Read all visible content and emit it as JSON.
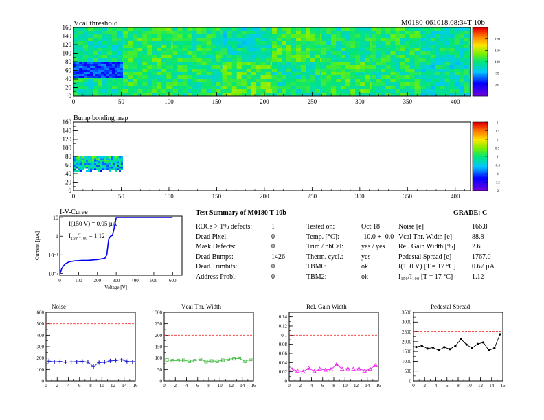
{
  "page": {
    "run_id": "M0180-061018.08:34T-10b"
  },
  "chart_data": [
    {
      "id": "vcal_threshold",
      "type": "heatmap",
      "title": "Vcal threshold",
      "xlim": [
        0,
        416
      ],
      "ylim": [
        0,
        160
      ],
      "x_ticks": [
        0,
        50,
        100,
        150,
        200,
        250,
        300,
        350,
        400
      ],
      "y_ticks": [
        0,
        20,
        40,
        60,
        80,
        100,
        120,
        140,
        160
      ],
      "colorbar_ticks": [
        80,
        90,
        100,
        110,
        120
      ],
      "colorbar_range": [
        70,
        130
      ],
      "rocs": [
        {
          "x": [
            0,
            52
          ],
          "y": [
            80,
            160
          ],
          "level": 98
        },
        {
          "x": [
            52,
            104
          ],
          "y": [
            80,
            160
          ],
          "level": 102
        },
        {
          "x": [
            104,
            156
          ],
          "y": [
            80,
            160
          ],
          "level": 100
        },
        {
          "x": [
            156,
            208
          ],
          "y": [
            80,
            160
          ],
          "level": 97
        },
        {
          "x": [
            208,
            260
          ],
          "y": [
            80,
            160
          ],
          "level": 103
        },
        {
          "x": [
            260,
            312
          ],
          "y": [
            80,
            160
          ],
          "level": 99
        },
        {
          "x": [
            312,
            364
          ],
          "y": [
            80,
            160
          ],
          "level": 101
        },
        {
          "x": [
            364,
            416
          ],
          "y": [
            80,
            160
          ],
          "level": 98
        },
        {
          "x": [
            0,
            52
          ],
          "y": [
            0,
            80
          ],
          "level": 99
        },
        {
          "x": [
            52,
            104
          ],
          "y": [
            0,
            80
          ],
          "level": 101
        },
        {
          "x": [
            104,
            156
          ],
          "y": [
            0,
            80
          ],
          "level": 100
        },
        {
          "x": [
            156,
            208
          ],
          "y": [
            0,
            80
          ],
          "level": 104
        },
        {
          "x": [
            208,
            260
          ],
          "y": [
            0,
            80
          ],
          "level": 99
        },
        {
          "x": [
            260,
            312
          ],
          "y": [
            0,
            80
          ],
          "level": 102
        },
        {
          "x": [
            312,
            364
          ],
          "y": [
            0,
            80
          ],
          "level": 100
        },
        {
          "x": [
            364,
            416
          ],
          "y": [
            0,
            80
          ],
          "level": 97
        }
      ],
      "low_region": {
        "x": [
          0,
          50
        ],
        "y": [
          45,
          80
        ],
        "level": 84
      }
    },
    {
      "id": "bump_bonding_map",
      "type": "heatmap",
      "title": "Bump bonding map",
      "xlim": [
        0,
        416
      ],
      "ylim": [
        0,
        160
      ],
      "x_ticks": [
        0,
        50,
        100,
        150,
        200,
        250,
        300,
        350,
        400
      ],
      "y_ticks": [
        0,
        20,
        40,
        60,
        80,
        100,
        120,
        140,
        160
      ],
      "colorbar_ticks": [
        "2",
        "1.5",
        "1",
        "0.5",
        "0",
        "-0.5",
        "-1",
        "-1.5",
        "-2"
      ],
      "colorbar_range": [
        -2,
        2
      ],
      "filled_region": {
        "x": [
          0,
          50
        ],
        "y": [
          45,
          80
        ]
      }
    },
    {
      "id": "iv_curve",
      "type": "line",
      "title": "I-V-Curve",
      "xlabel": "Voltage [V]",
      "ylabel": "Current [µA]",
      "xlim": [
        0,
        650
      ],
      "ylim": [
        0.008,
        12
      ],
      "log_y": true,
      "x_ticks": [
        0,
        100,
        200,
        300,
        400,
        500,
        600
      ],
      "y_ticks": [
        {
          "v": 0.01,
          "l": "10⁻²"
        },
        {
          "v": 0.1,
          "l": "10⁻¹"
        },
        {
          "v": 1,
          "l": "1"
        },
        {
          "v": 10,
          "l": "10"
        }
      ],
      "annotation_1": "I(150 V) = 0.05 µA",
      "annotation_2": "I₁₅₀/I₁₀₀ = 1.12",
      "x": [
        0,
        5,
        10,
        20,
        30,
        50,
        80,
        120,
        150,
        200,
        240,
        250,
        260,
        270,
        280,
        290,
        300,
        320,
        600
      ],
      "y": [
        0.009,
        0.012,
        0.018,
        0.026,
        0.033,
        0.042,
        0.047,
        0.05,
        0.05,
        0.055,
        0.065,
        0.1,
        0.7,
        1.0,
        1.1,
        3.0,
        10.0,
        10.0,
        10.0
      ]
    },
    {
      "id": "noise",
      "type": "line",
      "title": "Noise",
      "xlim": [
        0,
        16
      ],
      "ylim": [
        0,
        600
      ],
      "x_ticks": [
        0,
        2,
        4,
        6,
        8,
        10,
        12,
        14,
        16
      ],
      "y_ticks": [
        0,
        100,
        200,
        300,
        400,
        500,
        600
      ],
      "threshold": 500,
      "color": "#2222cc",
      "marker": "cross",
      "x": [
        0.5,
        1.5,
        2.5,
        3.5,
        4.5,
        5.5,
        6.5,
        7.5,
        8.5,
        9.5,
        10.5,
        11.5,
        12.5,
        13.5,
        14.5,
        15.5
      ],
      "y": [
        172,
        167,
        170,
        163,
        166,
        168,
        171,
        164,
        125,
        160,
        162,
        175,
        178,
        185,
        170,
        168
      ]
    },
    {
      "id": "vcal_thr_width",
      "type": "line",
      "title": "Vcal Thr. Width",
      "xlim": [
        0,
        16
      ],
      "ylim": [
        0,
        300
      ],
      "x_ticks": [
        0,
        2,
        4,
        6,
        8,
        10,
        12,
        14,
        16
      ],
      "y_ticks": [
        0,
        50,
        100,
        150,
        200,
        250,
        300
      ],
      "threshold": 200,
      "color": "#44bb44",
      "marker": "square",
      "x": [
        0.5,
        1.5,
        2.5,
        3.5,
        4.5,
        5.5,
        6.5,
        7.5,
        8.5,
        9.5,
        10.5,
        11.5,
        12.5,
        13.5,
        14.5,
        15.5
      ],
      "y": [
        92,
        88,
        89,
        90,
        86,
        88,
        95,
        84,
        87,
        86,
        90,
        95,
        97,
        98,
        86,
        94
      ]
    },
    {
      "id": "rel_gain_width",
      "type": "line",
      "title": "Rel. Gain Width",
      "xlim": [
        0,
        16
      ],
      "ylim": [
        0,
        0.15
      ],
      "x_ticks": [
        0,
        2,
        4,
        6,
        8,
        10,
        12,
        14,
        16
      ],
      "y_ticks": [
        0,
        0.02,
        0.04,
        0.06,
        0.08,
        0.1,
        0.12,
        0.14
      ],
      "threshold": 0.1,
      "color": "#ee22ee",
      "marker": "triangle",
      "x": [
        0.5,
        1.5,
        2.5,
        3.5,
        4.5,
        5.5,
        6.5,
        7.5,
        8.5,
        9.5,
        10.5,
        11.5,
        12.5,
        13.5,
        14.5,
        15.5
      ],
      "y": [
        0.025,
        0.022,
        0.02,
        0.028,
        0.021,
        0.026,
        0.024,
        0.025,
        0.036,
        0.026,
        0.027,
        0.026,
        0.027,
        0.022,
        0.026,
        0.034
      ]
    },
    {
      "id": "pedestal_spread",
      "type": "line",
      "title": "Pedestal Spread",
      "xlim": [
        0,
        16
      ],
      "ylim": [
        0,
        3500
      ],
      "x_ticks": [
        0,
        2,
        4,
        6,
        8,
        10,
        12,
        14,
        16
      ],
      "y_ticks": [
        0,
        500,
        1000,
        1500,
        2000,
        2500,
        3000,
        3500
      ],
      "threshold": 2500,
      "color": "#000000",
      "marker": "dot",
      "x": [
        0.5,
        1.5,
        2.5,
        3.5,
        4.5,
        5.5,
        6.5,
        7.5,
        8.5,
        9.5,
        10.5,
        11.5,
        12.5,
        13.5,
        14.5,
        15.5
      ],
      "y": [
        1730,
        1800,
        1650,
        1700,
        1560,
        1720,
        1620,
        1780,
        2130,
        1850,
        1680,
        1880,
        1960,
        1560,
        1670,
        2380
      ]
    }
  ],
  "summary": {
    "title": "Test Summary of M0180    T-10b",
    "grade": "GRADE:  C",
    "col1": [
      {
        "label": "ROCs > 1% defects:",
        "value": "1"
      },
      {
        "label": "Dead Pixel:",
        "value": "0"
      },
      {
        "label": "Mask Defects:",
        "value": "0"
      },
      {
        "label": "Dead Bumps:",
        "value": "1426"
      },
      {
        "label": "Dead Trimbits:",
        "value": "0"
      },
      {
        "label": "Address Probl:",
        "value": "0"
      }
    ],
    "col2": [
      {
        "label": "Tested on:",
        "value": "Oct 18"
      },
      {
        "label": "Temp. [°C]:",
        "value": "-10.0 +- 0.0"
      },
      {
        "label": "Trim / phCal:",
        "value": "yes / yes"
      },
      {
        "label": "Therm. cycl.:",
        "value": "yes"
      },
      {
        "label": "TBM0:",
        "value": "ok"
      },
      {
        "label": "TBM2:",
        "value": "ok"
      }
    ],
    "col3": [
      {
        "label": "Noise [e]",
        "value": "166.8"
      },
      {
        "label": "Vcal Thr. Width [e]",
        "value": "88.8"
      },
      {
        "label": "Rel. Gain Width [%]",
        "value": "2.6"
      },
      {
        "label": "Pedestal Spread [e]",
        "value": "1767.0"
      },
      {
        "label": "I(150 V) [T = 17 °C]",
        "value": "0.67 µA"
      },
      {
        "label": "I₁₅₀/I₁₀₀    [T = 17 °C]",
        "value": "1.12"
      }
    ]
  }
}
